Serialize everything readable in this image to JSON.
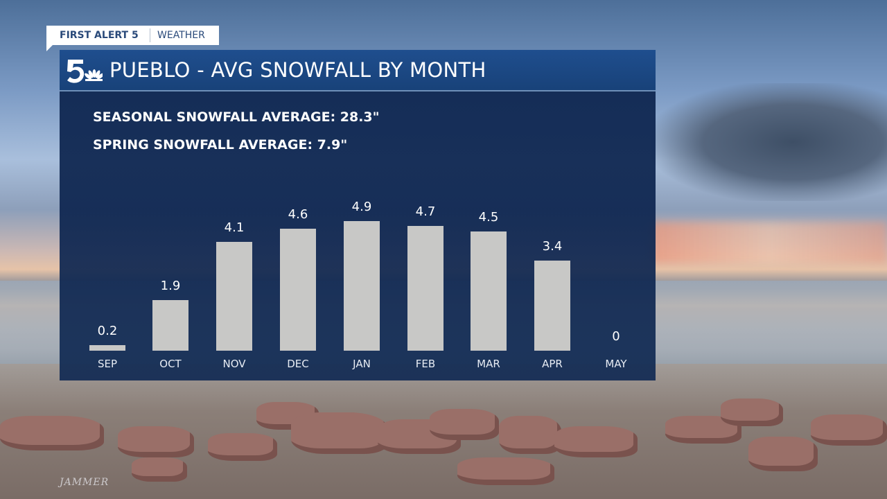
{
  "brand": {
    "tag_left": "FIRST ALERT 5",
    "tag_right": "WEATHER",
    "logo": "nbc5-peacock-logo"
  },
  "panel": {
    "title": "PUEBLO - AVG SNOWFALL BY MONTH",
    "stats": [
      "SEASONAL SNOWFALL AVERAGE: 28.3\"",
      "SPRING SNOWFALL AVERAGE: 7.9\""
    ]
  },
  "watermark": "JAMMER",
  "colors": {
    "panel_bg": "#102852",
    "header_bg": "#1f4e8e",
    "bar": "#c8c8c6",
    "text": "#ffffff",
    "tag_text": "#2a4a7a"
  },
  "chart_data": {
    "type": "bar",
    "title": "PUEBLO - AVG SNOWFALL BY MONTH",
    "subtitle": "SEASONAL SNOWFALL AVERAGE: 28.3\" / SPRING SNOWFALL AVERAGE: 7.9\"",
    "categories": [
      "SEP",
      "OCT",
      "NOV",
      "DEC",
      "JAN",
      "FEB",
      "MAR",
      "APR",
      "MAY"
    ],
    "values": [
      0.2,
      1.9,
      4.1,
      4.6,
      4.9,
      4.7,
      4.5,
      3.4,
      0
    ],
    "value_labels": [
      "0.2",
      "1.9",
      "4.1",
      "4.6",
      "4.9",
      "4.7",
      "4.5",
      "3.4",
      "0"
    ],
    "xlabel": "",
    "ylabel": "",
    "ylim": [
      0,
      5
    ],
    "grid": false,
    "legend": "none",
    "data_labels": true
  }
}
